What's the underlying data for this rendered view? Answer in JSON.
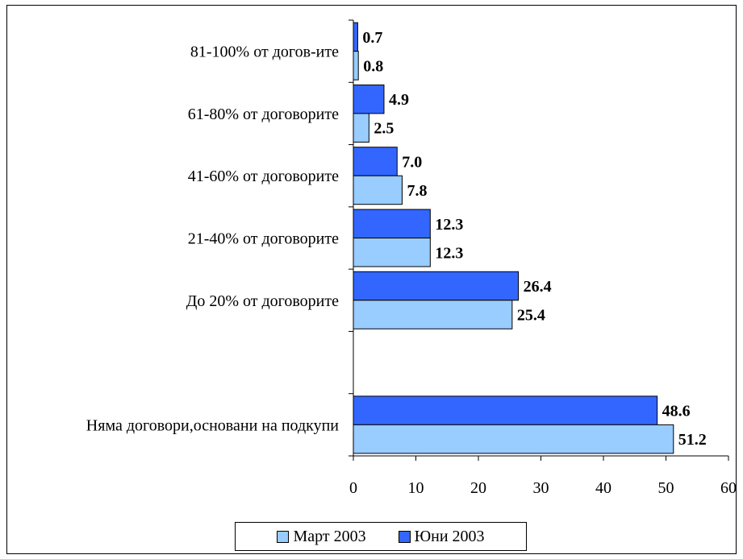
{
  "chart_data": {
    "type": "bar",
    "orientation": "horizontal",
    "categories": [
      "81-100% от догов-ите",
      "61-80% от договорите",
      "41-60% от договорите",
      "21-40% от договорите",
      "До 20% от договорите",
      "",
      "Няма договори,основани на подкупи"
    ],
    "series": [
      {
        "name": "Юни 2003",
        "color": "#3366FF",
        "values": [
          0.7,
          4.9,
          7.0,
          12.3,
          26.4,
          null,
          48.6
        ],
        "labels": [
          "0.7",
          "4.9",
          "7.0",
          "12.3",
          "26.4",
          "",
          "48.6"
        ]
      },
      {
        "name": "Март 2003",
        "color": "#99CCFF",
        "values": [
          0.8,
          2.5,
          7.8,
          12.3,
          25.4,
          null,
          51.2
        ],
        "labels": [
          "0.8",
          "2.5",
          "7.8",
          "12.3",
          "25.4",
          "",
          "51.2"
        ]
      }
    ],
    "xlim": [
      0,
      60
    ],
    "xticks": [
      "0",
      "10",
      "20",
      "30",
      "40",
      "50",
      "60"
    ],
    "grid": false,
    "legend_position": "bottom",
    "legend": [
      {
        "name": "Март 2003",
        "color": "#99CCFF"
      },
      {
        "name": "Юни 2003",
        "color": "#3366FF"
      }
    ]
  }
}
